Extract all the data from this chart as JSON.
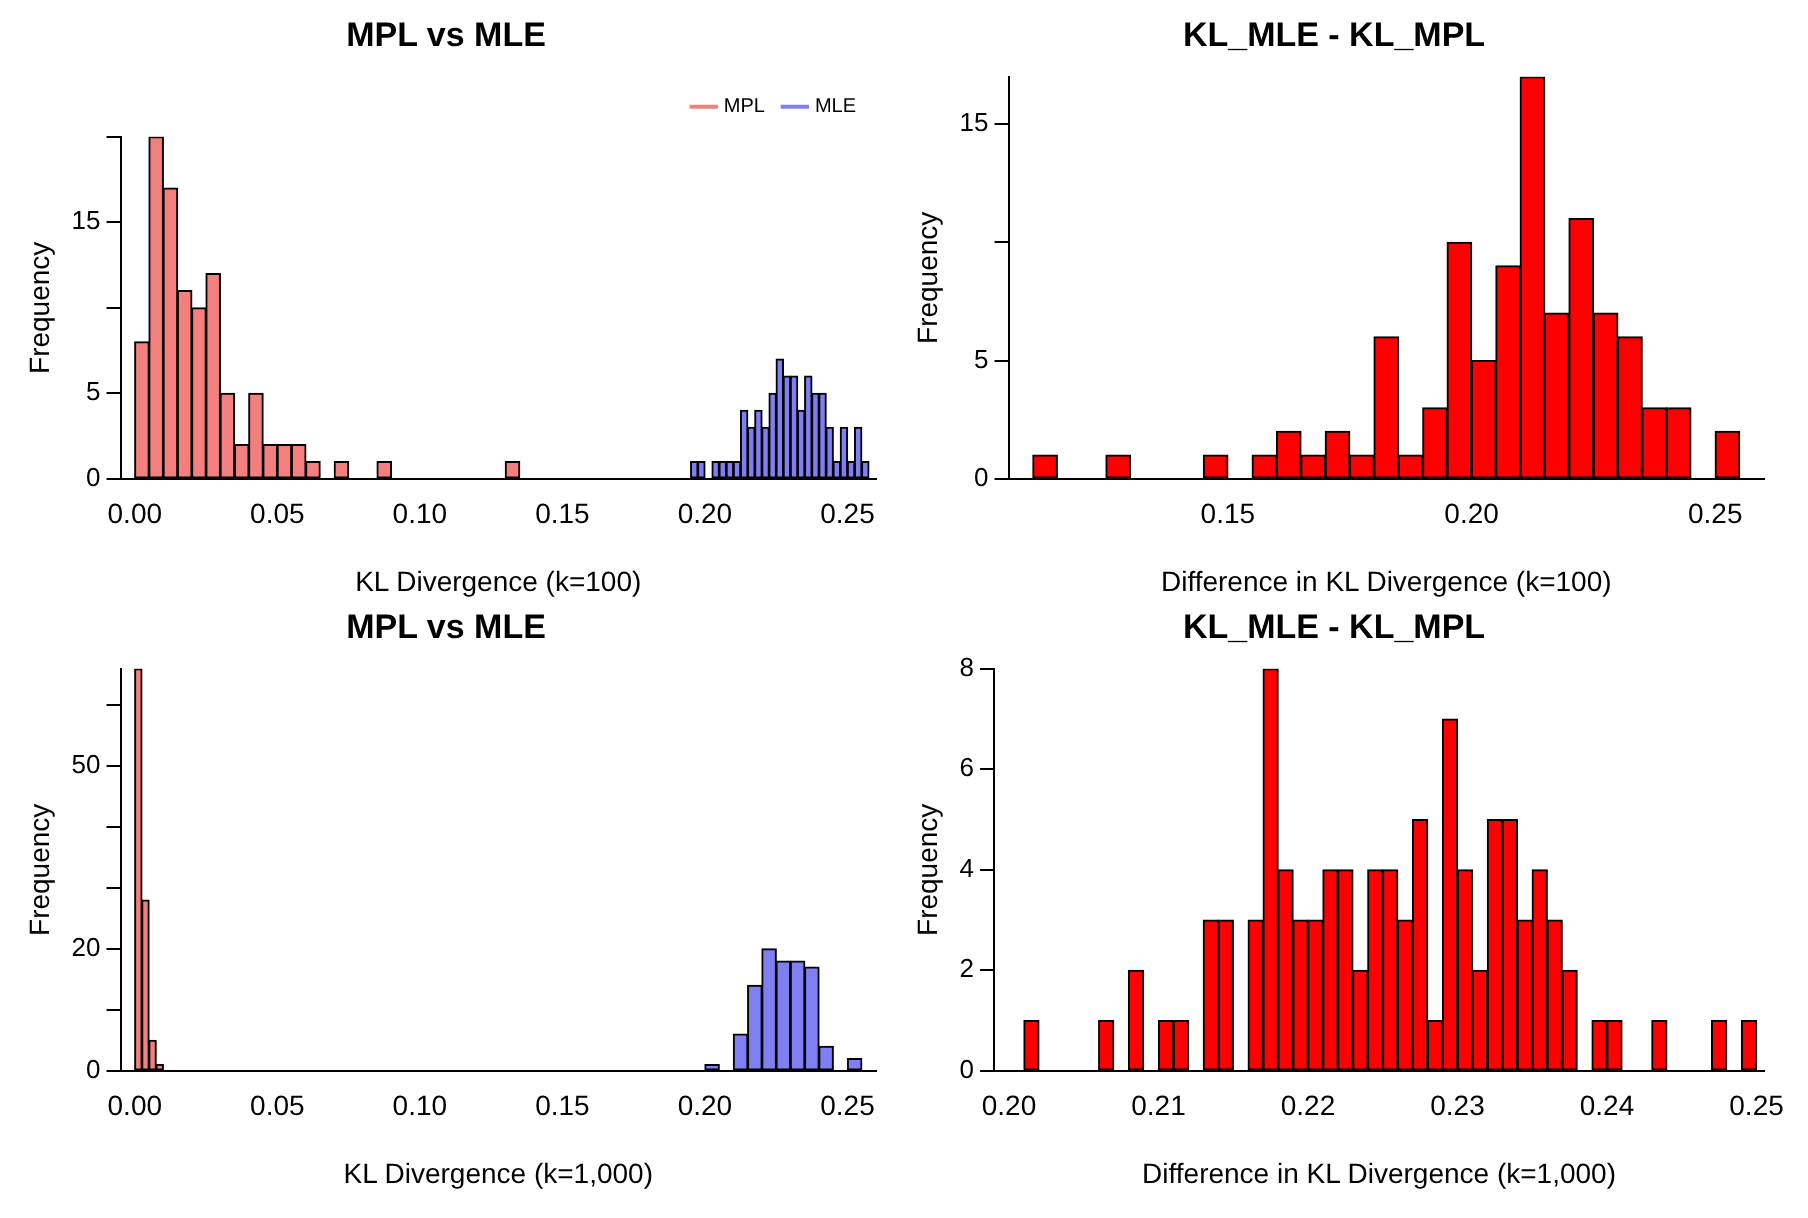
{
  "chart_data": [
    {
      "type": "histogram",
      "title": "MPL vs MLE",
      "xlabel": "KL Divergence (k=100)",
      "ylabel": "Frequency",
      "legend": "top right",
      "xlim": [
        -0.005,
        0.26
      ],
      "xticks": [
        {
          "value": 0,
          "label": "0.00"
        },
        {
          "value": 0.05,
          "label": "0.05"
        },
        {
          "value": 0.1,
          "label": "0.10"
        },
        {
          "value": 0.15,
          "label": "0.15"
        },
        {
          "value": 0.2,
          "label": "0.20"
        },
        {
          "value": 0.25,
          "label": "0.25"
        }
      ],
      "ylim": [
        0,
        20
      ],
      "yticks": [
        0,
        5,
        {
          "value": 10,
          "label": null
        },
        15,
        {
          "value": 20,
          "label": null
        }
      ],
      "series": [
        {
          "name": "MPL",
          "color": "#f47f7f",
          "values": [
            8,
            20,
            17,
            11,
            10,
            12,
            5,
            2,
            5,
            2,
            2,
            2,
            1,
            0,
            1,
            0,
            0,
            1,
            0,
            0,
            0,
            0,
            0,
            0,
            0,
            0,
            1,
            null,
            null,
            null,
            null,
            null,
            null,
            null,
            null,
            null,
            null,
            null,
            null,
            null,
            null,
            null,
            null,
            null,
            null,
            null,
            null,
            null,
            null,
            null,
            null,
            null,
            null
          ]
        },
        {
          "name": "MLE",
          "color": "#7f7ff4",
          "values": [
            null,
            null,
            null,
            null,
            null,
            null,
            null,
            null,
            null,
            null,
            null,
            null,
            null,
            null,
            null,
            null,
            null,
            null,
            null,
            null,
            null,
            null,
            null,
            null,
            null,
            null,
            null,
            null,
            1,
            1,
            0,
            1,
            1,
            1,
            1,
            4,
            3,
            4,
            3,
            5,
            7,
            6,
            6,
            4,
            6,
            5,
            5,
            3,
            1,
            3,
            1,
            3,
            1
          ]
        }
      ],
      "bins": [
        0,
        0.005,
        0.01,
        0.015,
        0.02,
        0.025,
        0.03,
        0.035,
        0.04,
        0.045,
        0.05,
        0.055,
        0.06,
        0.065,
        0.07,
        0.075,
        0.08,
        0.085,
        0.09,
        0.095,
        0.1,
        0.105,
        0.11,
        0.115,
        0.12,
        0.125,
        0.13,
        0.135,
        0.195,
        0.1975,
        0.2,
        0.2025,
        0.205,
        0.2075,
        0.21,
        0.2125,
        0.215,
        0.2175,
        0.22,
        0.2225,
        0.225,
        0.2275,
        0.23,
        0.2325,
        0.235,
        0.2375,
        0.24,
        0.2425,
        0.245,
        0.2475,
        0.25,
        0.2525,
        0.255,
        0.2575
      ]
    },
    {
      "type": "histogram",
      "title": "KL_MLE - KL_MPL",
      "xlabel": "Difference in KL Divergence (k=100)",
      "ylabel": "Frequency",
      "xlim": [
        0.105,
        0.26
      ],
      "xticks": [
        {
          "value": 0.15,
          "label": "0.15"
        },
        {
          "value": 0.2,
          "label": "0.20"
        },
        {
          "value": 0.25,
          "label": "0.25"
        }
      ],
      "ylim": [
        0,
        17
      ],
      "yticks": [
        0,
        5,
        {
          "value": 10,
          "label": null
        },
        15
      ],
      "series": [
        {
          "color": "#ff0000",
          "values": [
            1,
            0,
            0,
            1,
            0,
            0,
            0,
            1,
            0,
            1,
            2,
            1,
            2,
            1,
            6,
            1,
            3,
            10,
            5,
            9,
            17,
            7,
            11,
            7,
            6,
            3,
            3,
            0,
            2
          ]
        }
      ],
      "bins": [
        0.11,
        0.115,
        0.12,
        0.125,
        0.13,
        0.135,
        0.14,
        0.145,
        0.15,
        0.155,
        0.16,
        0.165,
        0.17,
        0.175,
        0.18,
        0.185,
        0.19,
        0.195,
        0.2,
        0.205,
        0.21,
        0.215,
        0.22,
        0.225,
        0.23,
        0.235,
        0.24,
        0.245,
        0.25,
        0.255
      ]
    },
    {
      "type": "histogram",
      "title": "MPL vs MLE",
      "xlabel": "KL Divergence (k=1,000)",
      "ylabel": "Frequency",
      "xlim": [
        -0.005,
        0.26
      ],
      "xticks": [
        {
          "value": 0,
          "label": "0.00"
        },
        {
          "value": 0.05,
          "label": "0.05"
        },
        {
          "value": 0.1,
          "label": "0.10"
        },
        {
          "value": 0.15,
          "label": "0.15"
        },
        {
          "value": 0.2,
          "label": "0.20"
        },
        {
          "value": 0.25,
          "label": "0.25"
        }
      ],
      "ylim": [
        0,
        66
      ],
      "yticks": [
        0,
        {
          "value": 10,
          "label": null
        },
        20,
        {
          "value": 30,
          "label": null
        },
        {
          "value": 40,
          "label": null
        },
        50,
        {
          "value": 60,
          "label": null
        }
      ],
      "series": [
        {
          "color": "#f47f7f",
          "values": [
            66,
            28,
            5,
            1,
            null,
            null,
            null,
            null,
            null,
            null,
            null,
            null,
            null,
            null,
            null,
            null
          ]
        },
        {
          "color": "#7f7ff4",
          "values": [
            null,
            null,
            null,
            null,
            null,
            1,
            0,
            6,
            14,
            20,
            18,
            18,
            17,
            4,
            0,
            2
          ]
        }
      ],
      "bins": [
        0,
        0.0025,
        0.005,
        0.0075,
        0.01,
        0.2,
        0.205,
        0.21,
        0.215,
        0.22,
        0.225,
        0.23,
        0.235,
        0.24,
        0.245,
        0.25,
        0.255
      ]
    },
    {
      "type": "histogram",
      "title": "KL_MLE - KL_MPL",
      "xlabel": "Difference in KL Divergence (k=1,000)",
      "ylabel": "Frequency",
      "xlim": [
        0.199,
        0.2505
      ],
      "xticks": [
        {
          "value": 0.2,
          "label": "0.20"
        },
        {
          "value": 0.21,
          "label": "0.21"
        },
        {
          "value": 0.22,
          "label": "0.22"
        },
        {
          "value": 0.23,
          "label": "0.23"
        },
        {
          "value": 0.24,
          "label": "0.24"
        },
        {
          "value": 0.25,
          "label": "0.25"
        }
      ],
      "ylim": [
        0,
        8
      ],
      "yticks": [
        0,
        2,
        4,
        6,
        8
      ],
      "series": [
        {
          "color": "#ff0000",
          "values": [
            1,
            0,
            0,
            0,
            0,
            1,
            0,
            2,
            0,
            1,
            1,
            0,
            3,
            3,
            0,
            3,
            8,
            4,
            3,
            3,
            4,
            4,
            2,
            4,
            4,
            3,
            5,
            1,
            7,
            4,
            2,
            5,
            5,
            3,
            4,
            3,
            2,
            0,
            1,
            1,
            0,
            0,
            1,
            0,
            0,
            0,
            1,
            0,
            1
          ]
        }
      ],
      "bins": [
        0.201,
        0.202,
        0.203,
        0.204,
        0.205,
        0.206,
        0.207,
        0.208,
        0.209,
        0.21,
        0.211,
        0.212,
        0.213,
        0.214,
        0.215,
        0.216,
        0.217,
        0.218,
        0.219,
        0.22,
        0.221,
        0.222,
        0.223,
        0.224,
        0.225,
        0.226,
        0.227,
        0.228,
        0.229,
        0.23,
        0.231,
        0.232,
        0.233,
        0.234,
        0.235,
        0.236,
        0.237,
        0.238,
        0.239,
        0.24,
        0.241,
        0.242,
        0.243,
        0.244,
        0.245,
        0.246,
        0.247,
        0.248,
        0.249,
        0.25
      ]
    }
  ]
}
